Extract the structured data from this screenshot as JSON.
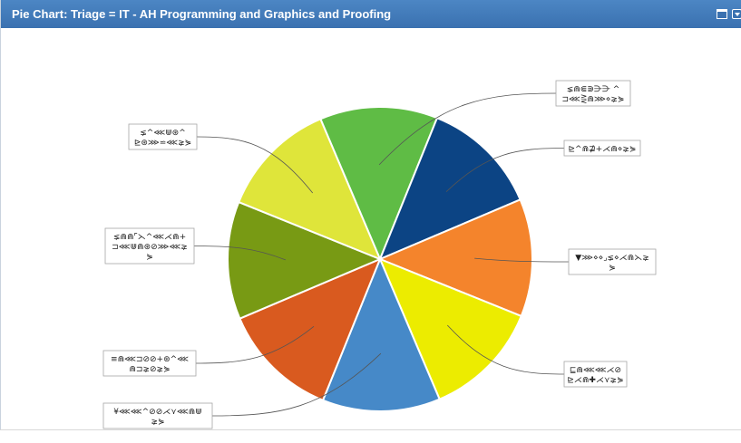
{
  "window": {
    "title": "Pie Chart: Triage = IT - AH Programming and Graphics and Proofing",
    "maximize_icon": "window-maximize-icon",
    "menu_icon": "chevron-down-icon"
  },
  "chart_data": {
    "type": "pie",
    "title": "Pie Chart: Triage = IT - AH Programming and Graphics and Proofing",
    "start_angle_deg": -23,
    "slices": [
      {
        "label_lines": [
          "⪇⋒⋐⋑⋺⋺ ^",
          "⊐⋘⋛⋒⋙⋄⪈⋟"
        ],
        "value": 1,
        "color": "#5fbc45"
      },
      {
        "label_lines": [
          "⊵^⋒⋣+⋌⋒⋄⪈⋟"
        ],
        "value": 1,
        "color": "#0c4484"
      },
      {
        "label_lines": [
          "▼⋙⋄⋄⌟⪇⋄⋌⋒⋋⪈",
          "⋟"
        ],
        "value": 1,
        "color": "#f4842c"
      },
      {
        "label_lines": [
          "⊑⋒⋘⋘⋌⊘",
          "⊵⋌⋒✚⋌⋎⪈⋟"
        ],
        "value": 1,
        "color": "#ecec00"
      },
      {
        "label_lines": [
          "¥⋘⋘^⊘⊘⋌⋎⋘⋒⋓",
          "⪈⋟"
        ],
        "value": 1,
        "color": "#4689c8"
      },
      {
        "label_lines": [
          "≡⋒⋘⊐⊘⊘+⊛^⋘",
          "⋒⊐⪈⊘⪈⋟"
        ],
        "value": 1,
        "color": "#d95a1f"
      },
      {
        "label_lines": [
          "⪇⋒⋒⌜⋋^⋘⋌⋒+",
          "⊐⋘⋓⋒⊛⊘⋙⋘⪈",
          "⋟"
        ],
        "value": 1,
        "color": "#789a14"
      },
      {
        "label_lines": [
          "⪇^⋘⋓⊛^",
          "⊵⊛⋙⋍⋘⪈⋟"
        ],
        "value": 1,
        "color": "#dfe53a"
      }
    ]
  }
}
